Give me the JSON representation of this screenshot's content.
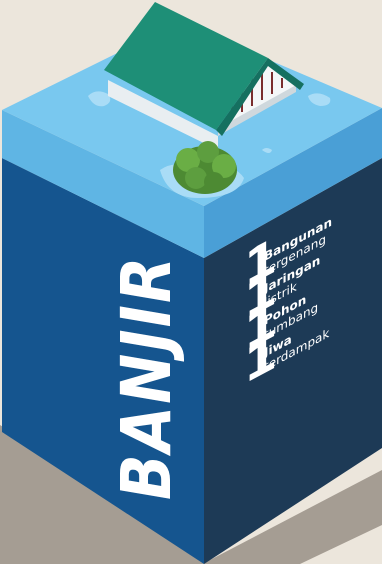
{
  "title": "BANJIR",
  "stats": [
    {
      "count": "1",
      "label": "Bangunan",
      "sub": "tergenang"
    },
    {
      "count": "1",
      "label": "Jaringan",
      "sub": "listrik"
    },
    {
      "count": "1",
      "label": "Pohon",
      "sub": "tumbang"
    },
    {
      "count": "1",
      "label": "Jiwa",
      "sub": "terdampak"
    }
  ],
  "colors": {
    "background": "#ece6dc",
    "water_top": "#79c8ef",
    "water_front": "#62b8e6",
    "face_left": "#15558f",
    "face_right": "#1d3a56",
    "roof": "#1e8f77",
    "tree": "#5d9e3f",
    "text": "#ffffff"
  },
  "icons": [
    "house-icon",
    "tree-icon",
    "water-splash-icon"
  ]
}
